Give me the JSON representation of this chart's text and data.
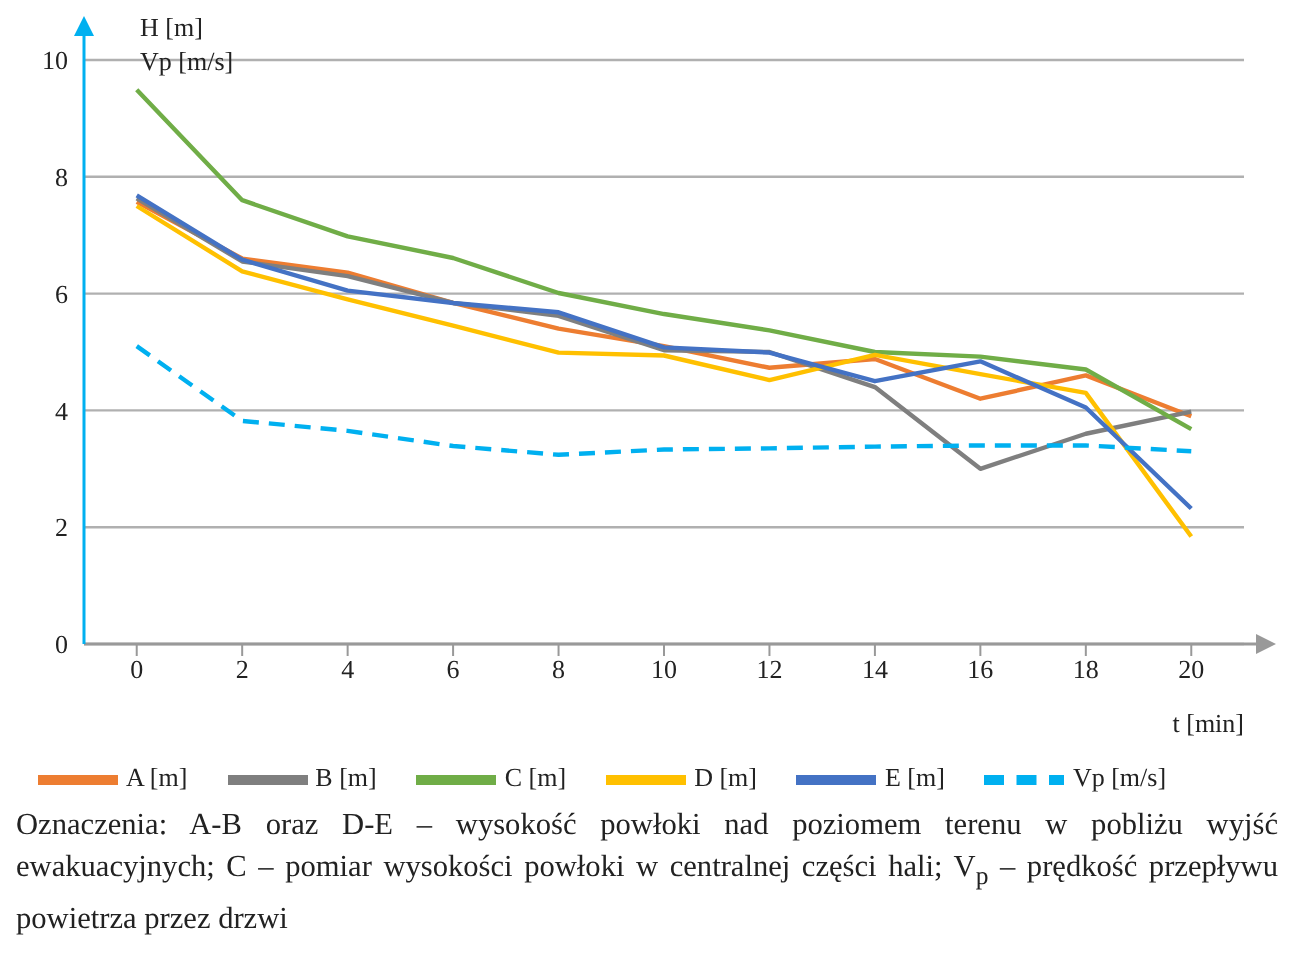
{
  "chart_data": {
    "type": "line",
    "x": [
      0,
      2,
      4,
      6,
      8,
      10,
      12,
      14,
      16,
      18,
      20
    ],
    "series": [
      {
        "name": "A [m]",
        "color": "#ed7d31",
        "values": [
          7.57,
          6.6,
          6.36,
          5.84,
          5.4,
          5.1,
          4.73,
          4.88,
          4.2,
          4.6,
          3.9
        ]
      },
      {
        "name": "B [m]",
        "color": "#7f7f7f",
        "values": [
          7.63,
          6.55,
          6.3,
          5.84,
          5.62,
          5.03,
          5.0,
          4.4,
          3.0,
          3.6,
          3.98
        ]
      },
      {
        "name": "C [m]",
        "color": "#70ad47",
        "values": [
          9.49,
          7.6,
          6.98,
          6.61,
          6.01,
          5.65,
          5.37,
          5.0,
          4.92,
          4.7,
          3.68
        ]
      },
      {
        "name": "D [m]",
        "color": "#ffc000",
        "values": [
          7.5,
          6.38,
          5.9,
          5.45,
          4.99,
          4.94,
          4.52,
          4.95,
          4.62,
          4.3,
          1.84
        ]
      },
      {
        "name": "E [m]",
        "color": "#4472c4",
        "values": [
          7.68,
          6.58,
          6.05,
          5.84,
          5.68,
          5.08,
          4.99,
          4.5,
          4.84,
          4.05,
          2.32
        ]
      },
      {
        "name": "Vp [m/s]",
        "color": "#00b0f0",
        "line_style": "dashed",
        "values": [
          5.1,
          3.82,
          3.65,
          3.39,
          3.24,
          3.33,
          3.35,
          3.38,
          3.4,
          3.4,
          3.3
        ]
      }
    ],
    "xlabel": "t [min]",
    "ylabel": "H [m]\nVp [m/s]",
    "xlim": [
      -1,
      21
    ],
    "xticks": [
      0,
      2,
      4,
      6,
      8,
      10,
      12,
      14,
      16,
      18,
      20
    ],
    "ylim": [
      0,
      10
    ],
    "yticks": [
      0,
      2,
      4,
      6,
      8,
      10
    ],
    "grid": "y",
    "legend": "bottom",
    "marker": "none",
    "line_style": "solid",
    "annotations": [
      "Oznaczenia: A-B oraz D-E – wysokość powłoki nad poziomem terenu w pobliżu wyjść ewakuacyjnych; C – pomiar wysokości powłoki w centralnej części hali; V$_{p}$ – prędkość przepływu powietrza przez drzwi"
    ]
  }
}
